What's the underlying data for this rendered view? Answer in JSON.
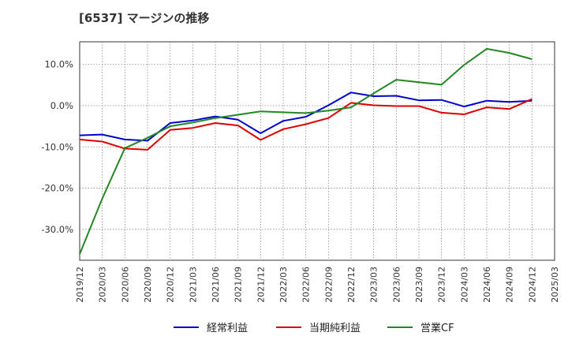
{
  "page": {
    "title": "[6537]  マージンの推移"
  },
  "chart_data": {
    "type": "line",
    "title": "[6537]  マージンの推移",
    "x": [
      "2019/12",
      "2020/03",
      "2020/06",
      "2020/09",
      "2020/12",
      "2021/03",
      "2021/06",
      "2021/09",
      "2021/12",
      "2022/03",
      "2022/06",
      "2022/09",
      "2022/12",
      "2023/03",
      "2023/06",
      "2023/09",
      "2023/12",
      "2024/03",
      "2024/06",
      "2024/09",
      "2024/12",
      "2025/03"
    ],
    "ylim": [
      -37.5,
      15.5
    ],
    "yticks": [
      10,
      0,
      -10,
      -20,
      -30
    ],
    "ytick_labels": [
      "10.0%",
      "0.0%",
      "-10.0%",
      "-20.0%",
      "-30.0%"
    ],
    "grid": true,
    "legend_position": "bottom",
    "series": [
      {
        "name": "経常利益",
        "color": "#0000cc",
        "values": [
          -7.2,
          -7.0,
          -8.2,
          -8.5,
          -4.2,
          -3.6,
          -2.6,
          -3.4,
          -6.7,
          -3.7,
          -2.7,
          0.1,
          3.2,
          2.3,
          2.4,
          1.3,
          1.4,
          -0.2,
          1.2,
          0.9,
          1.2,
          null
        ]
      },
      {
        "name": "当期純利益",
        "color": "#dd0000",
        "values": [
          -8.2,
          -8.7,
          -10.4,
          -10.7,
          -5.9,
          -5.4,
          -4.2,
          -4.8,
          -8.3,
          -5.7,
          -4.5,
          -3.0,
          0.7,
          0.1,
          -0.1,
          -0.1,
          -1.7,
          -2.1,
          -0.4,
          -0.8,
          1.6,
          null
        ]
      },
      {
        "name": "営業CF",
        "color": "#228822",
        "values": [
          -36.0,
          -22.5,
          -10.3,
          -7.8,
          -5.0,
          -4.1,
          -3.0,
          -2.2,
          -1.4,
          -1.6,
          -1.8,
          -1.2,
          -0.4,
          3.0,
          6.3,
          5.7,
          5.1,
          9.9,
          13.8,
          12.8,
          11.3,
          null
        ]
      }
    ]
  }
}
